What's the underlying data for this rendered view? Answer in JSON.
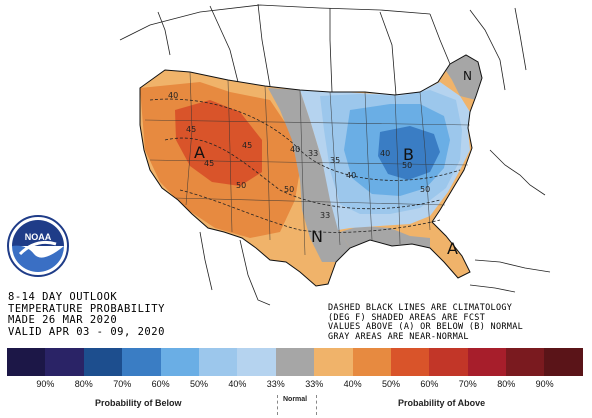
{
  "outlook": {
    "line1": "8-14 DAY OUTLOOK",
    "line2": "TEMPERATURE PROBABILITY",
    "line3": "MADE  26 MAR 2020",
    "line4": "VALID  APR 03 - 09, 2020"
  },
  "notes": {
    "line1": "DASHED BLACK LINES ARE CLIMATOLOGY",
    "line2": "(DEG F) SHADED AREAS ARE FCST",
    "line3": "VALUES ABOVE (A) OR BELOW (B) NORMAL",
    "line4": "GRAY AREAS ARE NEAR-NORMAL"
  },
  "map_labels": {
    "region_a_west": "A",
    "region_a_southeast": "A",
    "region_b": "B",
    "region_n_south": "N",
    "region_n_northeast": "N"
  },
  "contour_labels": [
    "40",
    "45",
    "45",
    "45",
    "50",
    "40",
    "33",
    "35",
    "40",
    "50",
    "50",
    "33",
    "40",
    "50"
  ],
  "legend": {
    "colors": [
      "#1c1747",
      "#2a2366",
      "#1d4e8e",
      "#3a7dc4",
      "#6aaee5",
      "#9cc7ec",
      "#b5d3ef",
      "#a6a6a6",
      "#f0b36a",
      "#e78a40",
      "#d9542a",
      "#c23628",
      "#a71e2b",
      "#7a1a1f",
      "#5a1418"
    ],
    "ticks": [
      "90%",
      "80%",
      "70%",
      "60%",
      "50%",
      "40%",
      "33%",
      "33%",
      "40%",
      "50%",
      "60%",
      "70%",
      "80%",
      "90%"
    ],
    "below_caption": "Probability of Below",
    "normal_caption": "Normal",
    "above_caption": "Probability of Above"
  },
  "logo": {
    "text": "NOAA"
  }
}
